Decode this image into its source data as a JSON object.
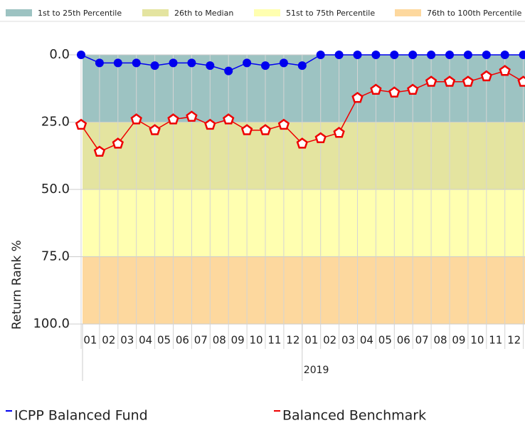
{
  "chart_data": {
    "type": "line",
    "y_label": "Return Rank %",
    "ylim": [
      100,
      0
    ],
    "yticks": [
      {
        "value": 0,
        "label": "0.0"
      },
      {
        "value": 25,
        "label": "25.0"
      },
      {
        "value": 50,
        "label": "50.0"
      },
      {
        "value": 75,
        "label": "75.0"
      },
      {
        "value": 100,
        "label": "100.0"
      }
    ],
    "bands": [
      {
        "name": "1st to 25th Percentile",
        "color": "#9dc3c2",
        "range": [
          0,
          25
        ]
      },
      {
        "name": "26th to Median",
        "color": "#e4e4a0",
        "range": [
          25,
          50
        ]
      },
      {
        "name": "51st to 75th Percentile",
        "color": "#ffffb0",
        "range": [
          50,
          75
        ]
      },
      {
        "name": "76th to 100th Percentile",
        "color": "#fdd89e",
        "range": [
          75,
          100
        ]
      }
    ],
    "categories": [
      null,
      "01",
      "02",
      "03",
      "04",
      "05",
      "06",
      "07",
      "08",
      "09",
      "10",
      "11",
      "12",
      "01",
      "02",
      "03",
      "04",
      "05",
      "06",
      "07",
      "08",
      "09",
      "10",
      "11",
      "12"
    ],
    "x_group": "2019",
    "series": [
      {
        "name": "ICPP Balanced Fund",
        "color": "#0000ee",
        "marker": "circle",
        "values": [
          0,
          3,
          3,
          3,
          4,
          3,
          3,
          4,
          6,
          3,
          4,
          3,
          4,
          0,
          0,
          0,
          0,
          0,
          0,
          0,
          0,
          0,
          0,
          0,
          0
        ]
      },
      {
        "name": "Balanced Benchmark",
        "color": "#ee0000",
        "marker": "pentagon",
        "values": [
          26,
          36,
          33,
          24,
          28,
          24,
          23,
          26,
          24,
          28,
          28,
          26,
          33,
          31,
          29,
          16,
          13,
          14,
          13,
          10,
          10,
          10,
          8,
          6,
          10
        ]
      }
    ]
  }
}
